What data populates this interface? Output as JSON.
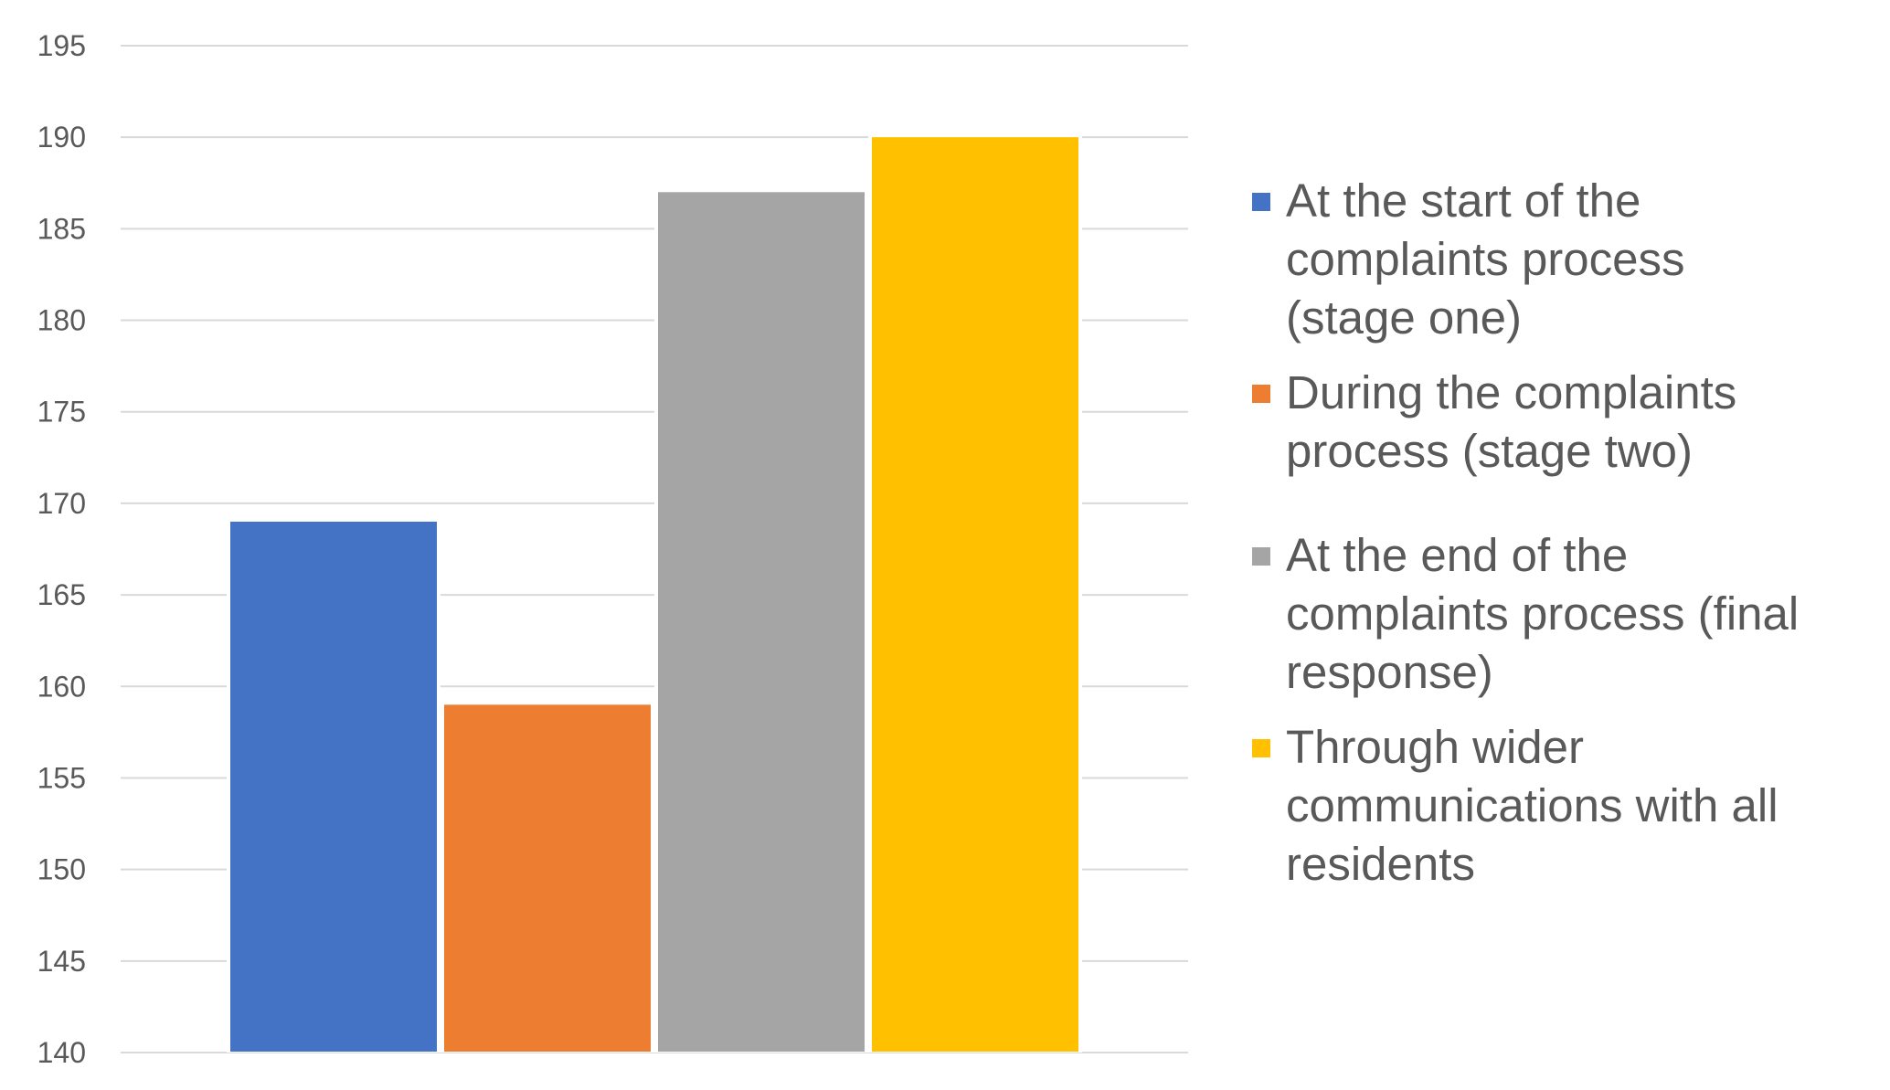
{
  "chart_data": {
    "type": "bar",
    "title": "",
    "xlabel": "",
    "ylabel": "",
    "ylim": [
      140,
      195
    ],
    "yticks": [
      140,
      145,
      150,
      155,
      160,
      165,
      170,
      175,
      180,
      185,
      190,
      195
    ],
    "grid": true,
    "legend_position": "right",
    "series": [
      {
        "name": "At the start of the complaints process (stage one)",
        "value": 169,
        "color": "#4472C4"
      },
      {
        "name": "During the complaints process (stage two)",
        "value": 159,
        "color": "#ED7D31"
      },
      {
        "name": "At the end of the complaints process (final response)",
        "value": 187,
        "color": "#A5A5A5"
      },
      {
        "name": "Through wider communications with all residents",
        "value": 190,
        "color": "#FFC000"
      }
    ]
  }
}
